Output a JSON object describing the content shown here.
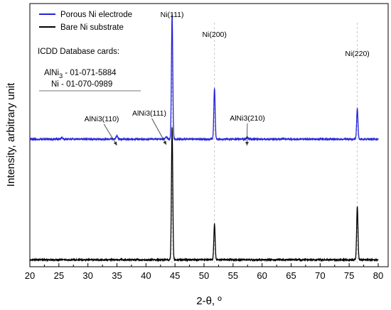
{
  "chart_data": {
    "type": "line",
    "xlabel": "2-θ, º",
    "ylabel": "Intensity, arbitrary unit",
    "xlim": [
      20,
      80
    ],
    "xticks": [
      20,
      25,
      30,
      35,
      40,
      45,
      50,
      55,
      60,
      65,
      70,
      75,
      80
    ],
    "ylim": [
      0,
      100
    ],
    "y_tick_labels": "none",
    "grid": false,
    "legend": {
      "placement": "top-left"
    },
    "series": [
      {
        "name": "Porous Ni electrode",
        "color": "#2323d8",
        "baseline": 48,
        "peaks": [
          {
            "x": 25.5,
            "height": 0.6
          },
          {
            "x": 35.0,
            "height": 1.3
          },
          {
            "x": 43.5,
            "height": 0.8
          },
          {
            "x": 44.5,
            "height": 49
          },
          {
            "x": 51.8,
            "height": 20
          },
          {
            "x": 57.4,
            "height": 0.8
          },
          {
            "x": 76.4,
            "height": 12
          }
        ]
      },
      {
        "name": "Bare Ni substrate",
        "color": "#000000",
        "baseline": 0.5,
        "peaks": [
          {
            "x": 44.5,
            "height": 52
          },
          {
            "x": 51.8,
            "height": 14
          },
          {
            "x": 76.4,
            "height": 21
          }
        ]
      }
    ],
    "annotations": [
      {
        "text": "Ni(111)",
        "x": 44.5
      },
      {
        "text": "Ni(200)",
        "x": 51.8
      },
      {
        "text": "Ni(220)",
        "x": 76.4
      },
      {
        "text": "AlNi3(110)",
        "x": 35.0
      },
      {
        "text": "AlNi3(111)",
        "x": 43.5
      },
      {
        "text": "AlNi3(210)",
        "x": 57.4
      }
    ],
    "info_box": {
      "title": "ICDD Database cards:",
      "line1_pre": "AlNi",
      "line1_sub": "3",
      "line1_post": " - 01-071-5884",
      "line2": "Ni - 01-070-0989"
    }
  }
}
